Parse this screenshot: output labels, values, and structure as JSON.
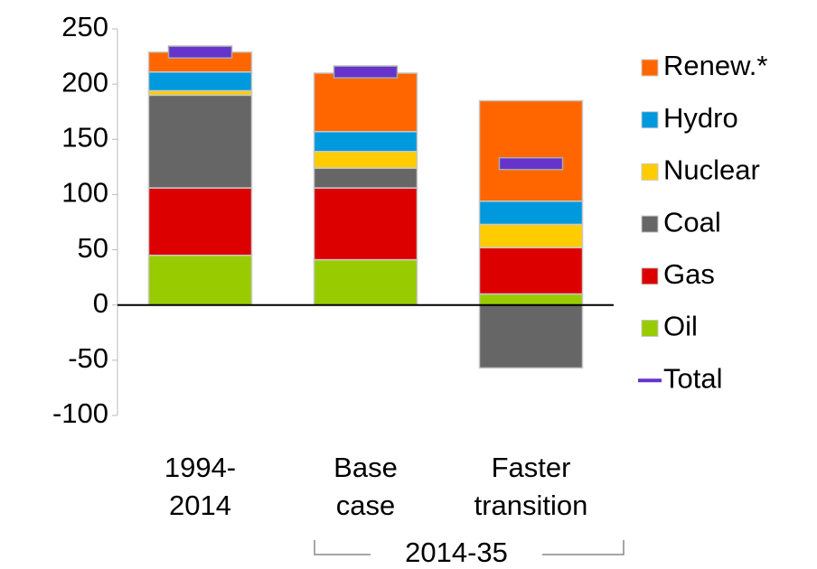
{
  "chart_data": {
    "type": "stacked_bar",
    "categories": [
      [
        "1994-",
        "2014"
      ],
      [
        "Base",
        "case"
      ],
      [
        "Faster",
        "transition"
      ]
    ],
    "annotation": "2014-35",
    "series": [
      {
        "name": "Oil",
        "color": "#99cc00",
        "values": [
          45,
          41,
          10
        ]
      },
      {
        "name": "Gas",
        "color": "#dd0000",
        "values": [
          61,
          65,
          42
        ]
      },
      {
        "name": "Coal",
        "color": "#666666",
        "values": [
          84,
          18,
          -57
        ]
      },
      {
        "name": "Nuclear",
        "color": "#ffcc00",
        "values": [
          4,
          15,
          21
        ]
      },
      {
        "name": "Hydro",
        "color": "#0099dd",
        "values": [
          17,
          18,
          21
        ]
      },
      {
        "name": "Renew.*",
        "color": "#ff6600",
        "values": [
          18,
          53,
          91
        ]
      }
    ],
    "total": {
      "name": "Total",
      "color": "#6633cc",
      "values": [
        229,
        211,
        128
      ]
    },
    "ylim": [
      -100,
      250
    ],
    "yticks": [
      -100,
      -50,
      0,
      50,
      100,
      150,
      200,
      250
    ]
  }
}
